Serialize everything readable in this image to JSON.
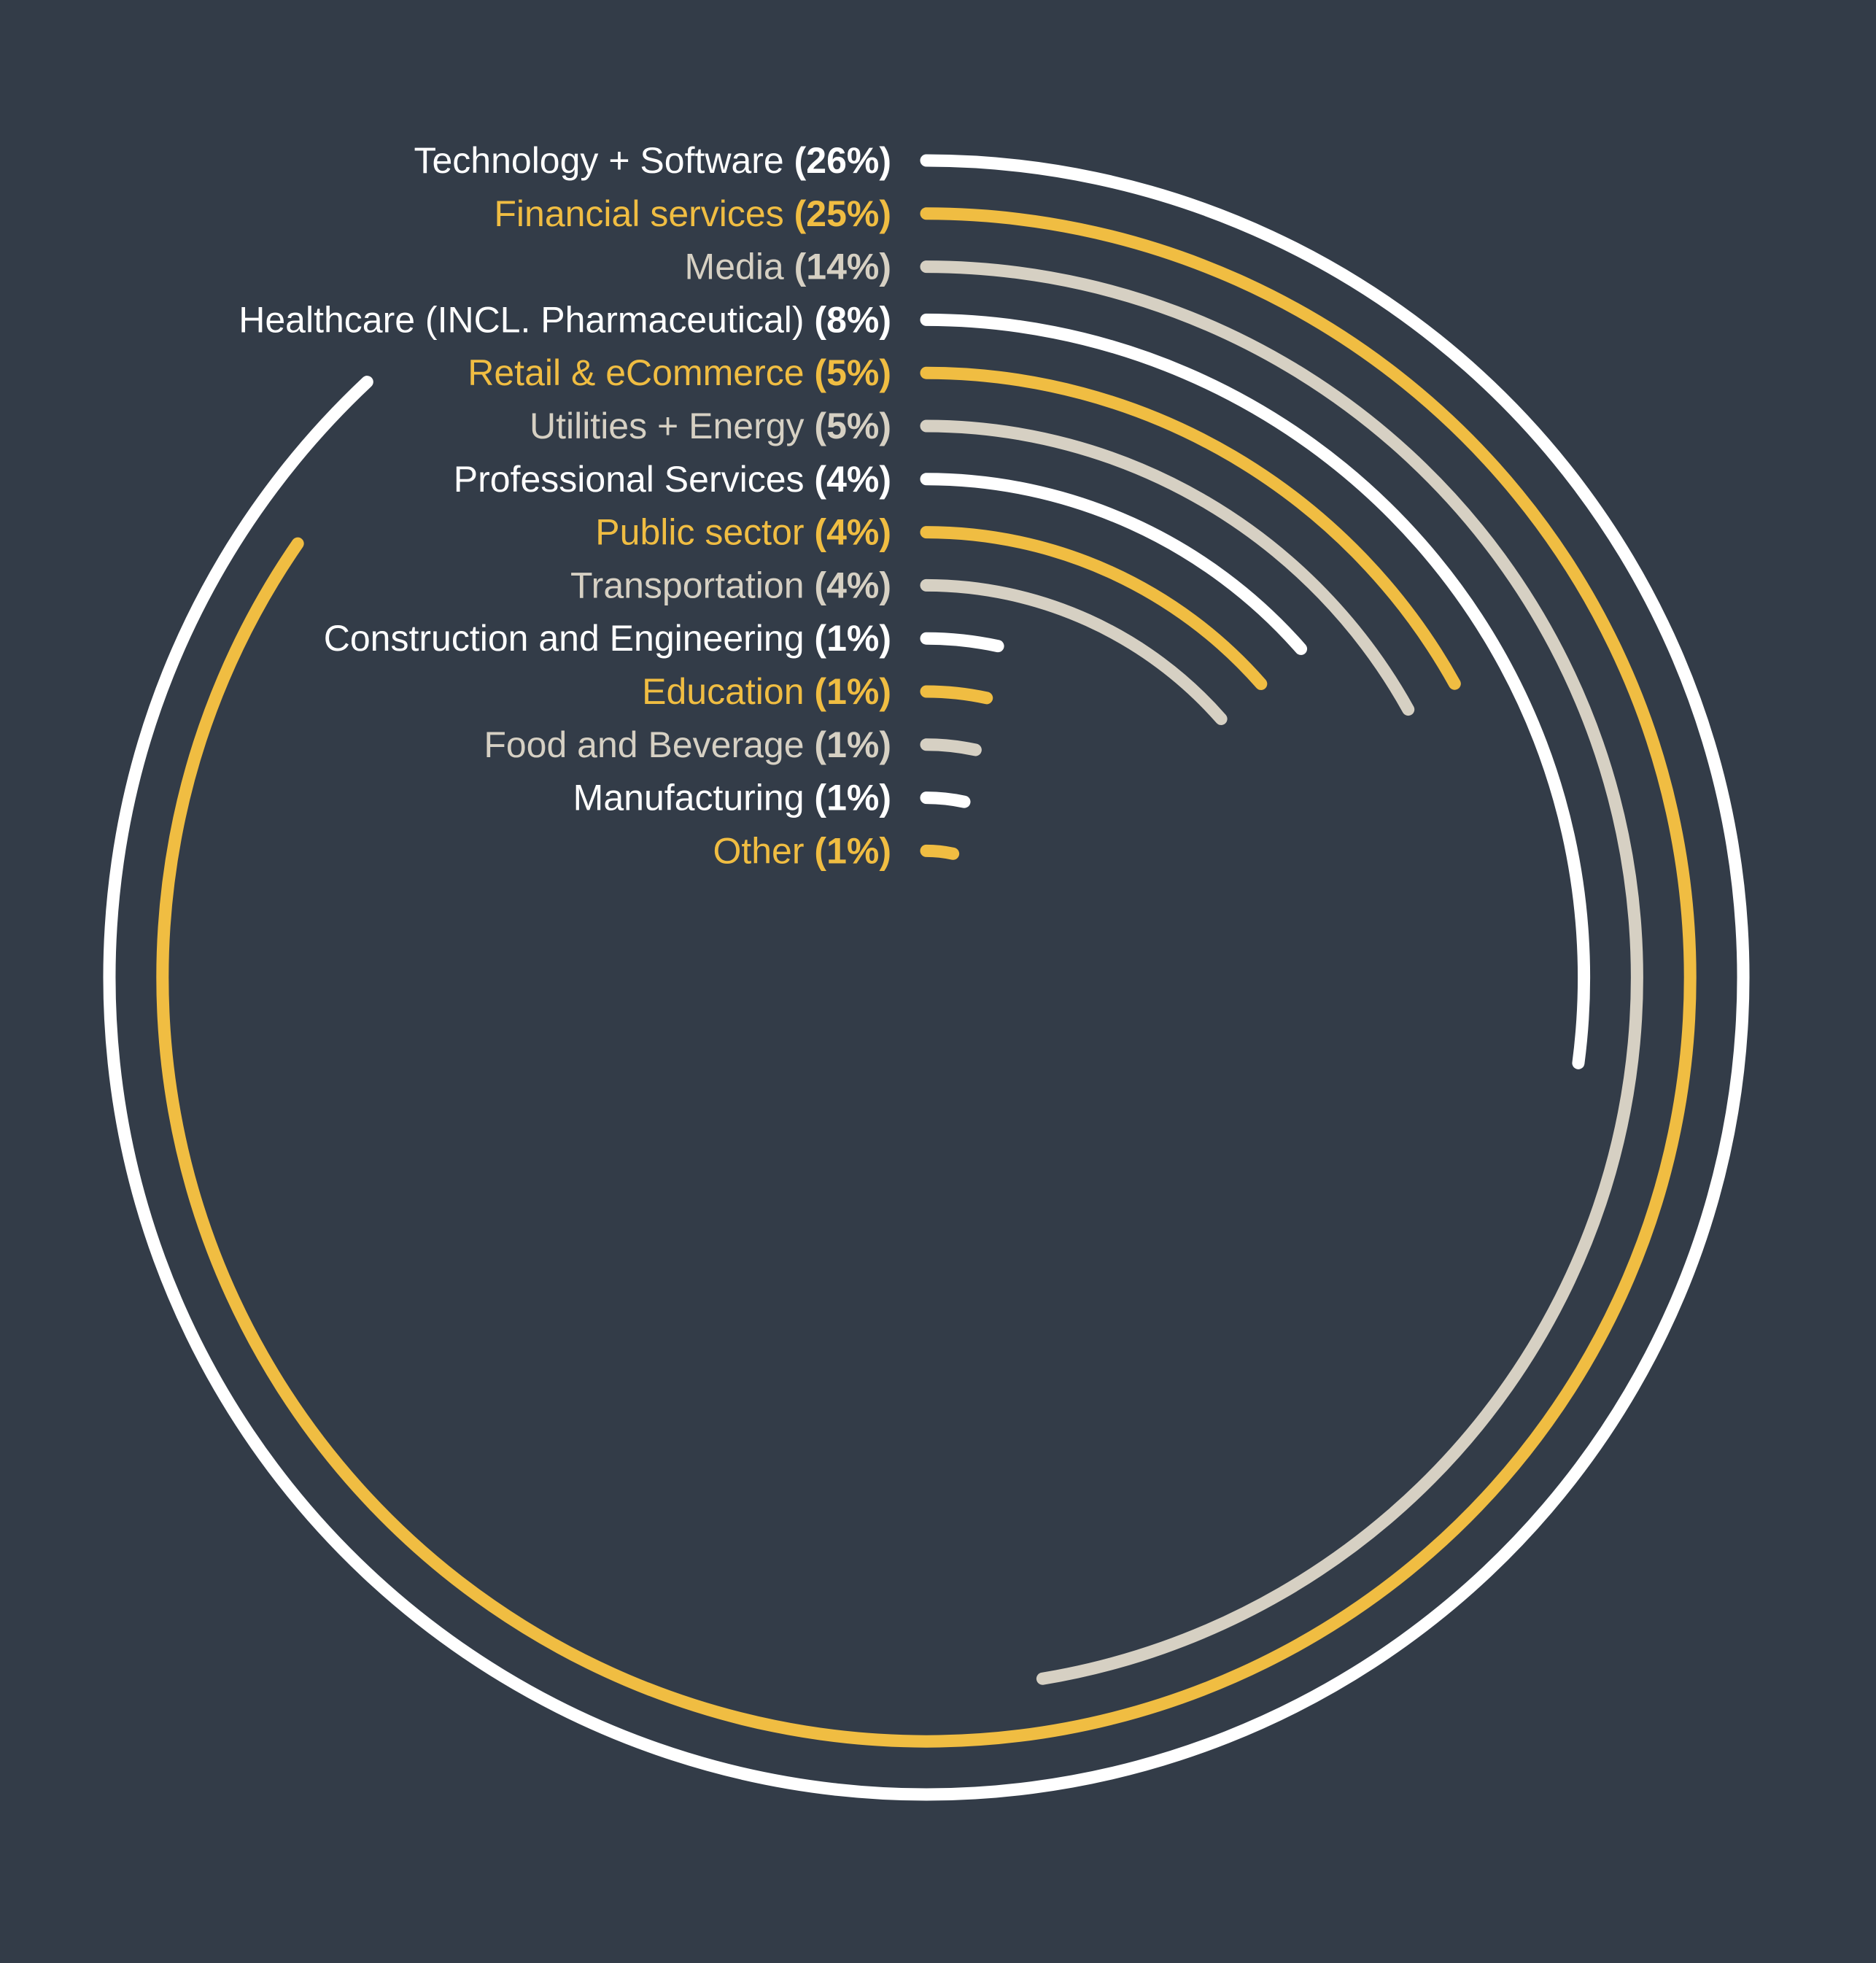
{
  "chart_data": {
    "type": "radial-bar",
    "max_value": 26,
    "value_unit": "%",
    "colors": {
      "background": "#333c48",
      "white": "#ffffff",
      "gold": "#f0bd42",
      "beige": "#d6d0c3"
    },
    "items": [
      {
        "label": "Technology + Software",
        "value": 26,
        "pct_text": "(26%)",
        "color": "#ffffff"
      },
      {
        "label": "Financial services",
        "value": 25,
        "pct_text": "(25%)",
        "color": "#f0bd42"
      },
      {
        "label": "Media",
        "value": 14,
        "pct_text": "(14%)",
        "color": "#d6d0c3"
      },
      {
        "label": "Healthcare (INCL. Pharmaceutical)",
        "value": 8,
        "pct_text": "(8%)",
        "color": "#ffffff"
      },
      {
        "label": "Retail & eCommerce",
        "value": 5,
        "pct_text": "(5%)",
        "color": "#f0bd42"
      },
      {
        "label": "Utilities + Energy",
        "value": 5,
        "pct_text": "(5%)",
        "color": "#d6d0c3"
      },
      {
        "label": "Professional Services",
        "value": 4,
        "pct_text": "(4%)",
        "color": "#ffffff"
      },
      {
        "label": "Public sector",
        "value": 4,
        "pct_text": "(4%)",
        "color": "#f0bd42"
      },
      {
        "label": "Transportation",
        "value": 4,
        "pct_text": "(4%)",
        "color": "#d6d0c3"
      },
      {
        "label": "Construction and Engineering",
        "value": 1,
        "pct_text": "(1%)",
        "color": "#ffffff"
      },
      {
        "label": "Education",
        "value": 1,
        "pct_text": "(1%)",
        "color": "#f0bd42"
      },
      {
        "label": "Food and Beverage",
        "value": 1,
        "pct_text": "(1%)",
        "color": "#d6d0c3"
      },
      {
        "label": "Manufacturing",
        "value": 1,
        "pct_text": "(1%)",
        "color": "#ffffff"
      },
      {
        "label": "Other",
        "value": 1,
        "pct_text": "(1%)",
        "color": "#f0bd42"
      }
    ]
  }
}
